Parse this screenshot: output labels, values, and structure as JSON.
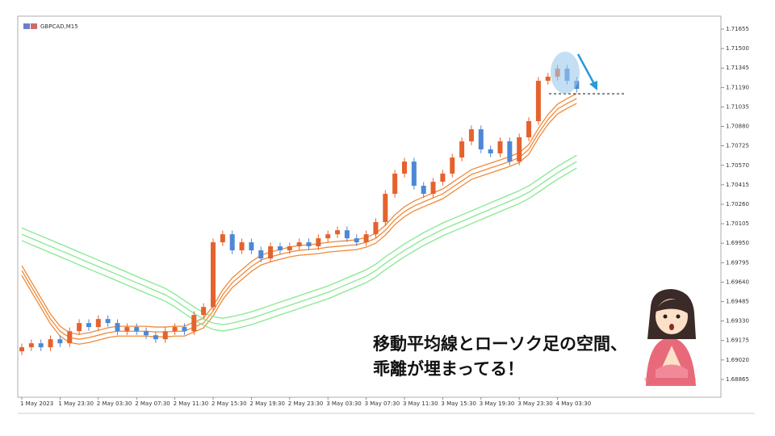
{
  "chart_data": {
    "type": "candlestick",
    "title": "GBPCAD,M15",
    "annotations": [
      "移動平均線とローソク足の空間、",
      "乖離が埋まってる！"
    ],
    "categories": [
      "1 May 2023",
      null,
      null,
      null,
      "1 May 23:30",
      null,
      null,
      null,
      "2 May 03:30",
      null,
      null,
      null,
      "2 May 07:30",
      null,
      null,
      null,
      "2 May 11:30",
      null,
      null,
      null,
      "2 May 15:30",
      null,
      null,
      null,
      "2 May 19:30",
      null,
      null,
      null,
      "2 May 23:30",
      null,
      null,
      null,
      "3 May 03:30",
      null,
      null,
      null,
      "3 May 07:30",
      null,
      null,
      null,
      "3 May 11:30",
      null,
      null,
      null,
      "3 May 15:30",
      null,
      null,
      null,
      "3 May 19:30",
      null,
      null,
      null,
      "3 May 23:30",
      null,
      null,
      null,
      "4 May 03:30",
      null,
      null
    ],
    "open": [
      1.69089,
      1.69121,
      1.69153,
      1.69121,
      1.69185,
      1.69153,
      1.69249,
      1.69314,
      1.69282,
      1.69346,
      1.69314,
      1.69249,
      1.69282,
      1.69249,
      1.69217,
      1.69185,
      1.69249,
      1.69282,
      1.69249,
      1.69378,
      1.69442,
      1.69957,
      1.70021,
      1.69893,
      1.69957,
      1.69893,
      1.69828,
      1.69925,
      1.69893,
      1.69925,
      1.69957,
      1.69925,
      1.69989,
      1.70021,
      1.70053,
      1.69989,
      1.69957,
      1.70021,
      1.70118,
      1.70343,
      1.70504,
      1.706,
      1.70407,
      1.70343,
      1.70439,
      1.70504,
      1.70632,
      1.70761,
      1.70857,
      1.70697,
      1.70665,
      1.70761,
      1.706,
      1.70793,
      1.70922,
      1.71243,
      1.71276,
      1.7134,
      1.71243
    ],
    "high": [
      1.69151,
      1.69183,
      1.69183,
      1.69215,
      1.69215,
      1.69279,
      1.69344,
      1.69344,
      1.69376,
      1.69376,
      1.69344,
      1.69312,
      1.69312,
      1.69279,
      1.69247,
      1.69279,
      1.69312,
      1.69312,
      1.69408,
      1.69472,
      1.69987,
      1.70051,
      1.70051,
      1.69987,
      1.69987,
      1.69923,
      1.69955,
      1.69955,
      1.69955,
      1.69987,
      1.69987,
      1.70019,
      1.70051,
      1.70083,
      1.70083,
      1.70019,
      1.70051,
      1.70148,
      1.70373,
      1.70534,
      1.7063,
      1.7063,
      1.70437,
      1.70469,
      1.70534,
      1.70662,
      1.70791,
      1.70887,
      1.70887,
      1.70727,
      1.70791,
      1.70791,
      1.70823,
      1.70952,
      1.71273,
      1.71306,
      1.7137,
      1.7137,
      1.71273
    ],
    "low": [
      1.69059,
      1.69091,
      1.69091,
      1.69091,
      1.69123,
      1.69123,
      1.69219,
      1.69252,
      1.69252,
      1.69284,
      1.69219,
      1.69219,
      1.69219,
      1.69187,
      1.69155,
      1.69155,
      1.69219,
      1.69219,
      1.69219,
      1.69348,
      1.69412,
      1.69927,
      1.69863,
      1.69863,
      1.69863,
      1.69798,
      1.69798,
      1.69863,
      1.69863,
      1.69895,
      1.69895,
      1.69895,
      1.69959,
      1.69991,
      1.69959,
      1.69927,
      1.69927,
      1.69991,
      1.70088,
      1.70313,
      1.70474,
      1.70377,
      1.70313,
      1.70313,
      1.70409,
      1.70474,
      1.70602,
      1.70731,
      1.70667,
      1.70635,
      1.70635,
      1.7057,
      1.7057,
      1.70763,
      1.70892,
      1.71213,
      1.71246,
      1.71213,
      1.71149
    ],
    "close": [
      1.69121,
      1.69153,
      1.69121,
      1.69185,
      1.69153,
      1.69249,
      1.69314,
      1.69282,
      1.69346,
      1.69314,
      1.69249,
      1.69282,
      1.69249,
      1.69217,
      1.69185,
      1.69249,
      1.69282,
      1.69249,
      1.69378,
      1.69442,
      1.69957,
      1.70021,
      1.69893,
      1.69957,
      1.69893,
      1.69828,
      1.69925,
      1.69893,
      1.69925,
      1.69957,
      1.69925,
      1.69989,
      1.70021,
      1.70053,
      1.69989,
      1.69957,
      1.70021,
      1.70118,
      1.70343,
      1.70504,
      1.706,
      1.70407,
      1.70343,
      1.70439,
      1.70504,
      1.70632,
      1.70761,
      1.70857,
      1.70697,
      1.70665,
      1.70761,
      1.706,
      1.70793,
      1.70922,
      1.71243,
      1.71276,
      1.7134,
      1.71243,
      1.71179
    ],
    "up_color": "#e5622d",
    "down_color": "#4d88d6",
    "lines": [
      {
        "color": "#f08a3a",
        "values": [
          1.69771,
          1.69642,
          1.69514,
          1.69385,
          1.69288,
          1.69237,
          1.69224,
          1.69237,
          1.69256,
          1.69276,
          1.69288,
          1.69288,
          1.69288,
          1.69288,
          1.69282,
          1.69282,
          1.69288,
          1.69288,
          1.69321,
          1.69353,
          1.69449,
          1.69578,
          1.69674,
          1.69739,
          1.69803,
          1.69854,
          1.6988,
          1.699,
          1.69919,
          1.69932,
          1.69938,
          1.69945,
          1.69957,
          1.69964,
          1.6997,
          1.69977,
          1.69996,
          1.70028,
          1.70092,
          1.70176,
          1.7024,
          1.70285,
          1.70318,
          1.7035,
          1.70382,
          1.70433,
          1.70485,
          1.70536,
          1.70562,
          1.70588,
          1.70613,
          1.70639,
          1.70671,
          1.70736,
          1.70864,
          1.70974,
          1.71057,
          1.71102,
          1.71141
        ]
      },
      {
        "color": "#f08a3a",
        "values": [
          1.69732,
          1.69603,
          1.69475,
          1.69346,
          1.69249,
          1.69198,
          1.69185,
          1.69198,
          1.69217,
          1.69237,
          1.69249,
          1.69249,
          1.69249,
          1.69249,
          1.69243,
          1.69243,
          1.69249,
          1.69249,
          1.69282,
          1.69314,
          1.6941,
          1.69539,
          1.69635,
          1.697,
          1.69764,
          1.69815,
          1.69841,
          1.69861,
          1.6988,
          1.69893,
          1.69899,
          1.69906,
          1.69918,
          1.69925,
          1.69931,
          1.69938,
          1.69957,
          1.69989,
          1.70053,
          1.70137,
          1.70201,
          1.70246,
          1.70279,
          1.70311,
          1.70343,
          1.70394,
          1.70446,
          1.70497,
          1.70523,
          1.70549,
          1.70574,
          1.706,
          1.70632,
          1.70697,
          1.70825,
          1.70935,
          1.71018,
          1.71063,
          1.71102
        ]
      },
      {
        "color": "#f08a3a",
        "values": [
          1.69693,
          1.69564,
          1.69436,
          1.69307,
          1.6921,
          1.69159,
          1.69146,
          1.69159,
          1.69178,
          1.69198,
          1.6921,
          1.6921,
          1.6921,
          1.6921,
          1.69204,
          1.69204,
          1.6921,
          1.6921,
          1.69243,
          1.69275,
          1.69371,
          1.695,
          1.69596,
          1.69661,
          1.69725,
          1.69776,
          1.69802,
          1.69822,
          1.69841,
          1.69854,
          1.6986,
          1.69867,
          1.69879,
          1.69886,
          1.69892,
          1.69899,
          1.69918,
          1.6995,
          1.70014,
          1.70098,
          1.70162,
          1.70207,
          1.7024,
          1.70272,
          1.70304,
          1.70355,
          1.70407,
          1.70458,
          1.70484,
          1.7051,
          1.70535,
          1.70561,
          1.70593,
          1.70658,
          1.70786,
          1.70896,
          1.70979,
          1.71024,
          1.71063
        ]
      },
      {
        "color": "#86e890",
        "values": [
          1.70072,
          1.7004,
          1.70008,
          1.69976,
          1.69944,
          1.69912,
          1.69879,
          1.69847,
          1.69815,
          1.69783,
          1.69751,
          1.69719,
          1.69686,
          1.69654,
          1.69622,
          1.6959,
          1.69545,
          1.69493,
          1.69442,
          1.69397,
          1.69365,
          1.69352,
          1.69365,
          1.69384,
          1.69403,
          1.69429,
          1.69455,
          1.69481,
          1.69506,
          1.69532,
          1.69558,
          1.69583,
          1.69609,
          1.69641,
          1.69674,
          1.69706,
          1.69738,
          1.69783,
          1.69841,
          1.69892,
          1.69944,
          1.69989,
          1.70034,
          1.70072,
          1.70111,
          1.70143,
          1.70175,
          1.70207,
          1.7024,
          1.70272,
          1.70304,
          1.70336,
          1.70368,
          1.70407,
          1.70458,
          1.7051,
          1.70561,
          1.70606,
          1.70651
        ]
      },
      {
        "color": "#86e890",
        "values": [
          1.70021,
          1.69989,
          1.69957,
          1.69925,
          1.69893,
          1.69861,
          1.69828,
          1.69796,
          1.69764,
          1.69732,
          1.697,
          1.69668,
          1.69635,
          1.69603,
          1.69571,
          1.69539,
          1.69494,
          1.69442,
          1.69391,
          1.69346,
          1.69314,
          1.69301,
          1.69314,
          1.69333,
          1.69352,
          1.69378,
          1.69404,
          1.6943,
          1.69455,
          1.69481,
          1.69507,
          1.69532,
          1.69558,
          1.6959,
          1.69623,
          1.69655,
          1.69687,
          1.69732,
          1.6979,
          1.69841,
          1.69893,
          1.69938,
          1.69983,
          1.70021,
          1.7006,
          1.70092,
          1.70124,
          1.70156,
          1.70189,
          1.70221,
          1.70253,
          1.70285,
          1.70317,
          1.70356,
          1.70407,
          1.70459,
          1.7051,
          1.70555,
          1.706
        ]
      },
      {
        "color": "#86e890",
        "values": [
          1.6997,
          1.69938,
          1.69906,
          1.69874,
          1.69842,
          1.6981,
          1.69777,
          1.69745,
          1.69713,
          1.69681,
          1.69649,
          1.69617,
          1.69584,
          1.69552,
          1.6952,
          1.69488,
          1.69443,
          1.69391,
          1.6934,
          1.69295,
          1.69263,
          1.6925,
          1.69263,
          1.69282,
          1.69301,
          1.69327,
          1.69353,
          1.69379,
          1.69404,
          1.6943,
          1.69456,
          1.69481,
          1.69507,
          1.69539,
          1.69572,
          1.69604,
          1.69636,
          1.69681,
          1.69739,
          1.6979,
          1.69842,
          1.69887,
          1.69932,
          1.6997,
          1.70009,
          1.70041,
          1.70073,
          1.70105,
          1.70138,
          1.7017,
          1.70202,
          1.70234,
          1.70266,
          1.70305,
          1.70356,
          1.70408,
          1.70459,
          1.70504,
          1.70549
        ]
      }
    ],
    "level": 1.7114,
    "ylim": [
      1.68736,
      1.71758
    ],
    "yticks": [
      1.71655,
      {
        "value": 1.715,
        "label": "1.71500"
      },
      1.71345,
      {
        "value": 1.7119,
        "label": "1.71190"
      },
      1.71035,
      {
        "value": 1.7088,
        "label": "1.70880"
      },
      1.70725,
      {
        "value": 1.7057,
        "label": "1.70570"
      },
      1.70415,
      {
        "value": 1.7026,
        "label": "1.70260"
      },
      1.70105,
      {
        "value": 1.6995,
        "label": "1.69950"
      },
      1.69795,
      {
        "value": 1.6964,
        "label": "1.69640"
      },
      1.69485,
      {
        "value": 1.6933,
        "label": "1.69330"
      },
      1.69175,
      {
        "value": 1.6902,
        "label": "1.69020"
      },
      1.68865
    ]
  }
}
